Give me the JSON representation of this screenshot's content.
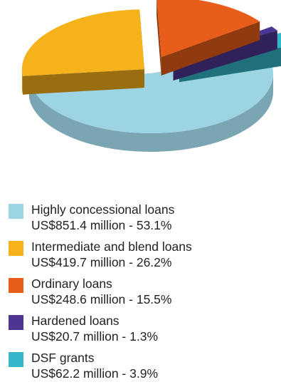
{
  "chart_data": {
    "type": "pie",
    "categories": [
      "Highly concessional loans",
      "Intermediate and blend loans",
      "Ordinary loans",
      "Hardened loans",
      "DSF grants"
    ],
    "values": [
      851.4,
      419.7,
      248.6,
      20.7,
      62.2
    ],
    "percentages": [
      53.1,
      26.2,
      15.5,
      1.3,
      3.9
    ],
    "value_labels": [
      "US$851.4 million - 53.1%",
      "US$419.7 million - 26.2%",
      "US$248.6 million - 15.5%",
      "US$20.7 million - 1.3%",
      "US$62.2 million - 3.9%"
    ],
    "colors": [
      "#9dd4e4",
      "#f5b21a",
      "#e85d19",
      "#4d3592",
      "#36b7c9"
    ],
    "exploded": true,
    "three_d": true,
    "legend_position": "bottom"
  }
}
